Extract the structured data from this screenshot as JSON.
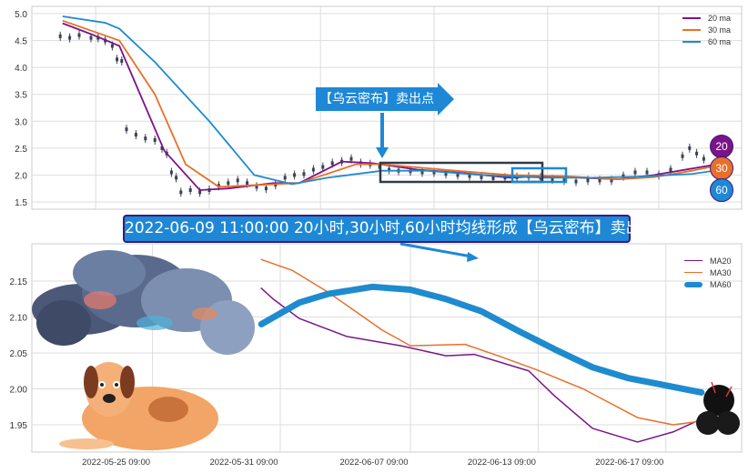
{
  "colors": {
    "ma20": "#7b1487",
    "ma30": "#e8702a",
    "ma60": "#1e8bcf",
    "candle": "#3b4256"
  },
  "banner": "2022-06-09 11:00:00 20小时,30小时,60小时均线形成【乌云密布】卖出点",
  "callout": "【乌云密布】卖出点",
  "badges": [
    "20",
    "30",
    "60"
  ],
  "chart_data": [
    {
      "type": "line",
      "title": "",
      "ylim": [
        1.45,
        5.05
      ],
      "yticks": [
        "5.0",
        "4.5",
        "4.0",
        "3.5",
        "3.0",
        "2.5",
        "2.0",
        "1.5"
      ],
      "ytick_values": [
        5.0,
        4.5,
        4.0,
        3.5,
        3.0,
        2.5,
        2.0,
        1.5
      ],
      "x_grid_index": [
        27,
        75,
        122,
        170,
        218,
        265
      ],
      "legend": [
        "20 ma",
        "30 ma",
        "60 ma"
      ],
      "legend_position": "top-right",
      "price": [
        [
          12,
          4.58
        ],
        [
          16,
          4.55
        ],
        [
          20,
          4.6
        ],
        [
          25,
          4.55
        ],
        [
          28,
          4.55
        ],
        [
          31,
          4.5
        ],
        [
          34,
          4.4
        ],
        [
          36,
          4.15
        ],
        [
          38,
          4.12
        ],
        [
          40,
          2.85
        ],
        [
          44,
          2.75
        ],
        [
          48,
          2.68
        ],
        [
          52,
          2.65
        ],
        [
          55,
          2.5
        ],
        [
          57,
          2.4
        ],
        [
          59,
          2.05
        ],
        [
          61,
          1.95
        ],
        [
          63,
          1.68
        ],
        [
          67,
          1.72
        ],
        [
          71,
          1.68
        ],
        [
          75,
          1.72
        ],
        [
          79,
          1.8
        ],
        [
          83,
          1.85
        ],
        [
          87,
          1.9
        ],
        [
          91,
          1.85
        ],
        [
          95,
          1.78
        ],
        [
          99,
          1.75
        ],
        [
          103,
          1.82
        ],
        [
          107,
          1.95
        ],
        [
          111,
          2.0
        ],
        [
          115,
          2.02
        ],
        [
          119,
          2.1
        ],
        [
          123,
          2.15
        ],
        [
          127,
          2.22
        ],
        [
          131,
          2.25
        ],
        [
          135,
          2.3
        ],
        [
          139,
          2.22
        ],
        [
          143,
          2.2
        ],
        [
          147,
          2.15
        ],
        [
          151,
          2.1
        ],
        [
          155,
          2.08
        ],
        [
          160,
          2.07
        ],
        [
          165,
          2.05
        ],
        [
          170,
          2.05
        ],
        [
          175,
          2.02
        ],
        [
          180,
          2.0
        ],
        [
          185,
          1.98
        ],
        [
          190,
          1.96
        ],
        [
          195,
          1.94
        ],
        [
          200,
          1.95
        ],
        [
          205,
          1.96
        ],
        [
          210,
          1.97
        ],
        [
          215,
          1.95
        ],
        [
          220,
          1.92
        ],
        [
          225,
          1.9
        ],
        [
          230,
          1.88
        ],
        [
          235,
          1.9
        ],
        [
          240,
          1.9
        ],
        [
          245,
          1.9
        ],
        [
          250,
          1.98
        ],
        [
          255,
          2.05
        ],
        [
          260,
          2.05
        ],
        [
          265,
          2.0
        ],
        [
          270,
          2.1
        ],
        [
          275,
          2.35
        ],
        [
          278,
          2.5
        ],
        [
          281,
          2.4
        ],
        [
          284,
          2.3
        ]
      ],
      "series": [
        {
          "name": "20 ma",
          "points": [
            [
              13,
              4.82
            ],
            [
              25,
              4.62
            ],
            [
              37,
              4.4
            ],
            [
              56,
              2.45
            ],
            [
              71,
              1.72
            ],
            [
              83,
              1.75
            ],
            [
              102,
              1.85
            ],
            [
              113,
              1.85
            ],
            [
              131,
              2.25
            ],
            [
              144,
              2.22
            ],
            [
              163,
              2.1
            ],
            [
              179,
              2.05
            ],
            [
              202,
              1.95
            ],
            [
              217,
              1.98
            ],
            [
              248,
              1.92
            ],
            [
              263,
              2.0
            ],
            [
              279,
              2.12
            ],
            [
              287,
              2.18
            ]
          ]
        },
        {
          "name": "30 ma",
          "points": [
            [
              13,
              4.87
            ],
            [
              37,
              4.5
            ],
            [
              52,
              3.5
            ],
            [
              65,
              2.2
            ],
            [
              79,
              1.78
            ],
            [
              98,
              1.82
            ],
            [
              113,
              1.85
            ],
            [
              137,
              2.2
            ],
            [
              148,
              2.2
            ],
            [
              179,
              2.08
            ],
            [
              202,
              2.0
            ],
            [
              225,
              1.98
            ],
            [
              248,
              1.92
            ],
            [
              263,
              1.96
            ],
            [
              279,
              2.08
            ],
            [
              287,
              2.15
            ]
          ]
        },
        {
          "name": "60 ma",
          "points": [
            [
              13,
              4.95
            ],
            [
              31,
              4.83
            ],
            [
              37,
              4.72
            ],
            [
              52,
              4.1
            ],
            [
              75,
              3.0
            ],
            [
              94,
              2.0
            ],
            [
              110,
              1.83
            ],
            [
              125,
              1.95
            ],
            [
              148,
              2.08
            ],
            [
              167,
              2.08
            ],
            [
              190,
              2.0
            ],
            [
              217,
              1.95
            ],
            [
              237,
              1.95
            ],
            [
              256,
              1.97
            ],
            [
              279,
              2.02
            ],
            [
              287,
              2.07
            ]
          ]
        }
      ]
    },
    {
      "type": "line",
      "title": "",
      "ylim": [
        1.915,
        2.195
      ],
      "yticks": [
        "2.15",
        "2.10",
        "2.05",
        "2.00",
        "1.95"
      ],
      "ytick_values": [
        2.15,
        2.1,
        2.05,
        2.0,
        1.95
      ],
      "xticks": [
        "2022-05-25 09:00",
        "2022-05-31 09:00",
        "2022-06-07 09:00",
        "2022-06-13 09:00",
        "2022-06-17 09:00"
      ],
      "xtick_index": [
        51,
        105,
        160,
        214,
        268
      ],
      "legend": [
        "MA20",
        "MA30",
        "MA60"
      ],
      "legend_position": "top-right",
      "series": [
        {
          "name": "MA20",
          "points": [
            [
              97,
              2.14
            ],
            [
              102,
              2.125
            ],
            [
              113,
              2.098
            ],
            [
              133,
              2.073
            ],
            [
              156,
              2.06
            ],
            [
              175,
              2.046
            ],
            [
              187,
              2.048
            ],
            [
              210,
              2.025
            ],
            [
              221,
              1.99
            ],
            [
              237,
              1.945
            ],
            [
              256,
              1.926
            ],
            [
              271,
              1.94
            ],
            [
              281,
              1.955
            ]
          ]
        },
        {
          "name": "MA30",
          "points": [
            [
              97,
              2.18
            ],
            [
              110,
              2.165
            ],
            [
              125,
              2.135
            ],
            [
              148,
              2.082
            ],
            [
              160,
              2.06
            ],
            [
              183,
              2.062
            ],
            [
              198,
              2.045
            ],
            [
              213,
              2.027
            ],
            [
              233,
              2.0
            ],
            [
              256,
              1.96
            ],
            [
              271,
              1.95
            ],
            [
              283,
              1.955
            ]
          ]
        },
        {
          "name": "MA60",
          "points": [
            [
              97,
              2.09
            ],
            [
              113,
              2.12
            ],
            [
              125,
              2.132
            ],
            [
              144,
              2.142
            ],
            [
              160,
              2.138
            ],
            [
              175,
              2.125
            ],
            [
              190,
              2.108
            ],
            [
              206,
              2.08
            ],
            [
              221,
              2.055
            ],
            [
              237,
              2.03
            ],
            [
              252,
              2.015
            ],
            [
              263,
              2.008
            ],
            [
              283,
              1.995
            ]
          ]
        }
      ]
    }
  ]
}
